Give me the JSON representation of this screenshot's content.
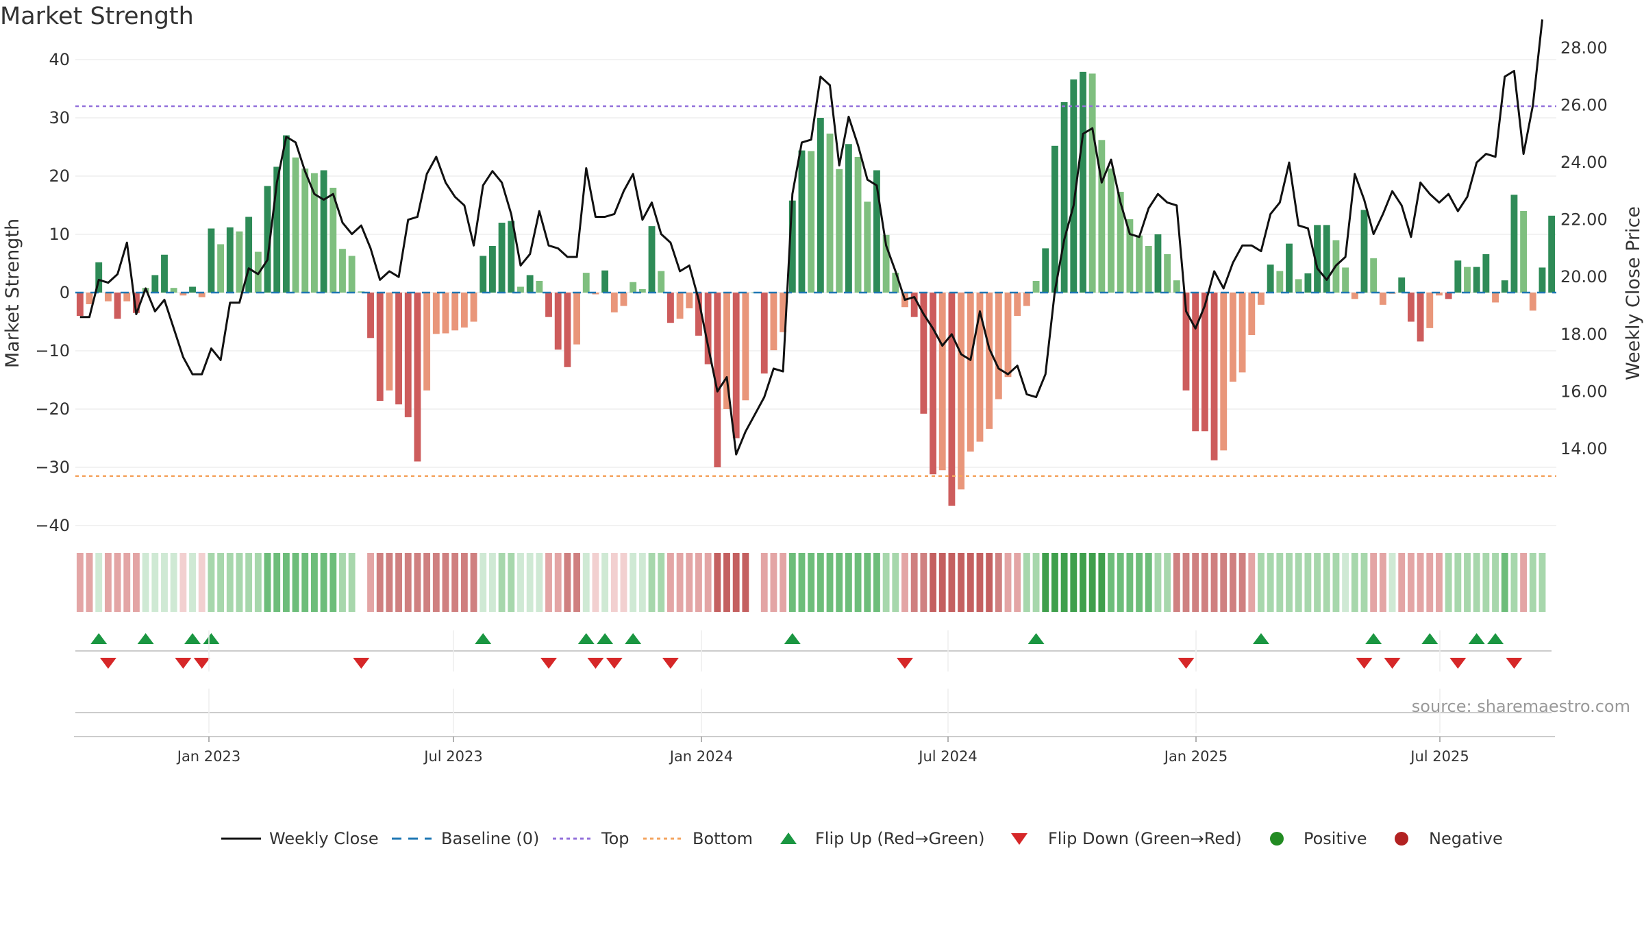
{
  "title": "Market Strength",
  "source": "source: sharemaestro.com",
  "chart_data": {
    "type": "bar",
    "title": "Market Strength",
    "ylabel": "Market Strength",
    "ylabel_right": "Weekly Close Price",
    "ylim": [
      -40,
      40
    ],
    "ylim_right": [
      12.2,
      29.2
    ],
    "yticks": [
      "40",
      "30",
      "20",
      "10",
      "0",
      "−10",
      "−20",
      "−30",
      "−40"
    ],
    "yticks_right": [
      "28.00",
      "26.00",
      "24.00",
      "22.00",
      "20.00",
      "18.00",
      "16.00",
      "14.00"
    ],
    "xticks": [
      "Jan 2023",
      "Jul 2023",
      "Jan 2024",
      "Jul 2024",
      "Jan 2025",
      "Jul 2025"
    ],
    "top_level": 32,
    "bottom_level": -31.5,
    "colors": {
      "pos_dark": "#2e8b57",
      "pos_light": "#7fbf7f",
      "neg_dark": "#cd5c5c",
      "neg_light": "#e9967a",
      "close": "#111111",
      "baseline": "#1f77b4",
      "top": "#9370db",
      "bottom": "#f4a460",
      "flip_up": "#1a9641",
      "flip_down": "#d62728",
      "positive": "#228b22",
      "negative": "#b22222"
    },
    "strength": [
      -4,
      -2,
      5.2,
      -1.5,
      -4.5,
      -1.5,
      -3.5,
      0.8,
      3,
      6.5,
      0.8,
      -0.5,
      1,
      -0.8,
      11,
      8.3,
      11.2,
      10.5,
      13,
      7,
      18.3,
      21.6,
      27,
      23.2,
      21.3,
      20.5,
      21,
      18,
      7.5,
      6.3,
      0.2,
      -7.8,
      -18.6,
      -16.8,
      -19.2,
      -21.4,
      -29,
      -16.8,
      -7.1,
      -7,
      -6.5,
      -6,
      -5,
      6.3,
      8,
      12,
      12.3,
      1,
      3,
      2,
      -4.2,
      -9.8,
      -12.8,
      -8.9,
      3.4,
      -0.3,
      3.8,
      -3.4,
      -2.3,
      1.8,
      0.6,
      11.4,
      3.7,
      -5.2,
      -4.5,
      -2.7,
      -7.4,
      -12.3,
      -30,
      -20,
      -25,
      -18.5,
      0,
      -13.9,
      -9.9,
      -6.8,
      15.8,
      24.4,
      24.3,
      30,
      27.3,
      21.2,
      25.5,
      23.3,
      15.6,
      21,
      9.9,
      3.4,
      -2.5,
      -4.2,
      -20.8,
      -31.2,
      -30.5,
      -36.6,
      -33.8,
      -27.3,
      -25.6,
      -23.4,
      -18.3,
      -14.5,
      -4,
      -2.3,
      2,
      7.6,
      25.2,
      32.7,
      36.6,
      37.9,
      37.6,
      26.2,
      21.3,
      17.3,
      12.6,
      9.8,
      8,
      10,
      6.6,
      2.1,
      -16.8,
      -23.8,
      -23.8,
      -28.8,
      -27.1,
      -15.3,
      -13.7,
      -7.3,
      -2.1,
      4.8,
      3.7,
      8.4,
      2.3,
      3.3,
      11.6,
      11.6,
      9,
      4.3,
      -1.1,
      14.2,
      5.9,
      -2.1,
      -0.2,
      2.6,
      -5,
      -8.4,
      -6.1,
      -0.5,
      -1.1,
      5.5,
      4.4,
      4.4,
      6.6,
      -1.7,
      2.1,
      16.8,
      14,
      -3.1,
      4.3,
      13.2
    ],
    "close": [
      18.6,
      18.6,
      19.9,
      19.8,
      20.1,
      21.2,
      18.7,
      19.6,
      18.8,
      19.2,
      18.2,
      17.2,
      16.6,
      16.6,
      17.5,
      17.1,
      19.1,
      19.1,
      20.3,
      20.1,
      20.6,
      23.3,
      24.9,
      24.7,
      23.7,
      22.9,
      22.7,
      22.9,
      21.9,
      21.5,
      21.8,
      21.0,
      19.9,
      20.2,
      20.0,
      22.0,
      22.1,
      23.6,
      24.2,
      23.3,
      22.8,
      22.5,
      21.1,
      23.2,
      23.7,
      23.3,
      22.2,
      20.4,
      20.8,
      22.3,
      21.1,
      21.0,
      20.7,
      20.7,
      23.8,
      22.1,
      22.1,
      22.2,
      23.0,
      23.6,
      22.0,
      22.6,
      21.5,
      21.2,
      20.2,
      20.4,
      19.2,
      17.6,
      16.0,
      16.5,
      13.8,
      14.6,
      15.2,
      15.8,
      16.8,
      16.7,
      22.9,
      24.7,
      24.8,
      27.0,
      26.7,
      23.9,
      25.6,
      24.6,
      23.4,
      23.2,
      21.1,
      20.2,
      19.2,
      19.3,
      18.7,
      18.2,
      17.6,
      18.0,
      17.3,
      17.1,
      18.8,
      17.5,
      16.8,
      16.6,
      16.9,
      15.9,
      15.8,
      16.6,
      19.5,
      21.3,
      22.5,
      25.0,
      25.2,
      23.3,
      24.1,
      22.6,
      21.5,
      21.4,
      22.4,
      22.9,
      22.6,
      22.5,
      18.8,
      18.2,
      19.0,
      20.2,
      19.6,
      20.5,
      21.1,
      21.1,
      20.9,
      22.2,
      22.6,
      24.0,
      21.8,
      21.7,
      20.3,
      19.9,
      20.4,
      20.7,
      23.6,
      22.7,
      21.5,
      22.2,
      23.0,
      22.5,
      21.4,
      23.3,
      22.9,
      22.6,
      22.9,
      22.3,
      22.8,
      24.0,
      24.3,
      24.2,
      27.0,
      27.2,
      24.3,
      26.0,
      29.0
    ],
    "regime_tints": [
      -2,
      -2,
      1,
      -2,
      -2,
      -2,
      -2,
      1,
      1,
      1,
      1,
      -1,
      1,
      -1,
      2,
      2,
      2,
      2,
      2,
      2,
      3,
      3,
      3,
      3,
      3,
      3,
      3,
      3,
      2,
      2,
      0,
      -2,
      -3,
      -3,
      -3,
      -3,
      -3,
      -3,
      -3,
      -3,
      -3,
      -3,
      -3,
      1,
      1,
      2,
      2,
      1,
      1,
      1,
      -2,
      -2,
      -3,
      -3,
      1,
      -1,
      1,
      -1,
      -1,
      1,
      1,
      2,
      2,
      -2,
      -2,
      -2,
      -2,
      -2,
      -4,
      -4,
      -4,
      -4,
      0,
      -2,
      -2,
      -2,
      3,
      3,
      3,
      3,
      3,
      3,
      3,
      3,
      3,
      3,
      2,
      2,
      -2,
      -3,
      -3,
      -4,
      -4,
      -4,
      -4,
      -4,
      -4,
      -4,
      -3,
      -2,
      -2,
      2,
      2,
      5,
      5,
      5,
      5,
      5,
      5,
      5,
      3,
      3,
      3,
      3,
      3,
      2,
      2,
      -3,
      -3,
      -3,
      -3,
      -3,
      -3,
      -3,
      -3,
      -2,
      2,
      2,
      2,
      2,
      2,
      2,
      2,
      2,
      2,
      1,
      2,
      2,
      -2,
      -2,
      1,
      -2,
      -2,
      -2,
      -2,
      -2,
      2,
      2,
      2,
      2,
      2,
      2,
      3,
      2,
      -2,
      2,
      2
    ],
    "flip_up": [
      2,
      7,
      12,
      14,
      43,
      54,
      56,
      59,
      76,
      102,
      126,
      138,
      144,
      149,
      151
    ],
    "flip_down": [
      3,
      11,
      13,
      30,
      50,
      55,
      57,
      63,
      88,
      118,
      137,
      140,
      147,
      153
    ],
    "legend": [
      "Weekly Close",
      "Baseline (0)",
      "Top",
      "Bottom",
      "Flip Up (Red→Green)",
      "Flip Down (Green→Red)",
      "Positive",
      "Negative"
    ]
  }
}
